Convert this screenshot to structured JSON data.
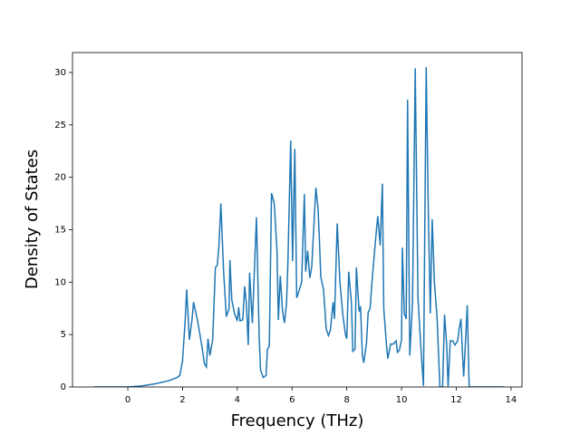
{
  "chart_data": {
    "type": "line",
    "x_label": "Frequency (THz)",
    "y_label": "Density of States",
    "x": [
      -1.25,
      0,
      0.5,
      1.0,
      1.5,
      1.8,
      1.9,
      2.0,
      2.1,
      2.15,
      2.25,
      2.35,
      2.4,
      2.55,
      2.7,
      2.8,
      2.87,
      2.93,
      3.0,
      3.1,
      3.2,
      3.27,
      3.33,
      3.4,
      3.5,
      3.6,
      3.7,
      3.73,
      3.8,
      3.9,
      4.0,
      4.05,
      4.1,
      4.2,
      4.27,
      4.33,
      4.4,
      4.45,
      4.55,
      4.7,
      4.8,
      4.85,
      4.95,
      5.05,
      5.1,
      5.17,
      5.25,
      5.35,
      5.45,
      5.5,
      5.57,
      5.65,
      5.72,
      5.8,
      5.85,
      5.95,
      6.02,
      6.1,
      6.17,
      6.27,
      6.35,
      6.45,
      6.5,
      6.57,
      6.65,
      6.72,
      6.8,
      6.87,
      6.95,
      7.0,
      7.05,
      7.15,
      7.25,
      7.33,
      7.4,
      7.5,
      7.55,
      7.65,
      7.75,
      7.85,
      7.95,
      8.0,
      8.07,
      8.17,
      8.22,
      8.3,
      8.35,
      8.45,
      8.5,
      8.57,
      8.62,
      8.72,
      8.78,
      8.85,
      8.92,
      9.0,
      9.05,
      9.13,
      9.22,
      9.3,
      9.35,
      9.45,
      9.5,
      9.6,
      9.7,
      9.8,
      9.85,
      9.92,
      10.0,
      10.03,
      10.1,
      10.17,
      10.22,
      10.3,
      10.4,
      10.5,
      10.6,
      10.7,
      10.8,
      10.9,
      10.97,
      11.05,
      11.12,
      11.2,
      11.3,
      11.4,
      11.5,
      11.57,
      11.65,
      11.7,
      11.78,
      11.87,
      11.95,
      12.05,
      12.1,
      12.17,
      12.22,
      12.27,
      12.35,
      12.4,
      12.47,
      12.5,
      13.75
    ],
    "series": [
      {
        "color": "#1f77b4",
        "values": [
          0,
          0,
          0.1,
          0.3,
          0.6,
          0.9,
          1.1,
          2.5,
          6.5,
          9.3,
          4.5,
          6.5,
          8.1,
          6.3,
          4.0,
          2.2,
          1.9,
          4.6,
          3.0,
          4.5,
          11.4,
          11.6,
          13.5,
          17.5,
          11.0,
          6.7,
          7.5,
          12.1,
          8.3,
          7.0,
          6.3,
          7.6,
          6.3,
          6.4,
          9.6,
          8.0,
          4.0,
          10.9,
          6.1,
          16.2,
          4.7,
          1.6,
          0.9,
          1.1,
          3.6,
          3.9,
          18.5,
          17.5,
          13.0,
          6.4,
          10.6,
          7.3,
          6.1,
          8.0,
          12.0,
          23.5,
          12.0,
          22.7,
          8.5,
          9.3,
          10.0,
          18.4,
          11.0,
          13.0,
          10.4,
          11.5,
          15.5,
          19.0,
          17.0,
          14.0,
          10.5,
          9.3,
          5.5,
          4.9,
          5.4,
          8.1,
          6.5,
          15.6,
          10.0,
          7.0,
          5.0,
          4.6,
          11.0,
          8.0,
          3.4,
          3.6,
          11.4,
          7.2,
          7.7,
          3.0,
          2.3,
          4.2,
          7.1,
          7.5,
          10.0,
          12.5,
          14.0,
          16.3,
          13.5,
          19.4,
          7.5,
          4.0,
          2.7,
          4.1,
          4.1,
          4.4,
          3.3,
          3.5,
          4.5,
          13.3,
          7.0,
          6.5,
          27.4,
          3.0,
          8.0,
          30.4,
          8.5,
          4.0,
          0.1,
          30.5,
          18.0,
          7.0,
          16.0,
          10.0,
          6.5,
          0,
          0,
          6.9,
          4.0,
          0,
          4.4,
          4.4,
          4.0,
          4.4,
          5.5,
          6.5,
          3.5,
          1.0,
          5.0,
          7.8,
          0,
          0,
          0
        ]
      }
    ],
    "xlim": [
      -2.02,
      14.4
    ],
    "ylim": [
      0,
      31.9
    ],
    "xticks": [
      0,
      2,
      4,
      6,
      8,
      10,
      12,
      14
    ],
    "yticks": [
      0,
      5,
      10,
      15,
      20,
      25,
      30
    ]
  }
}
